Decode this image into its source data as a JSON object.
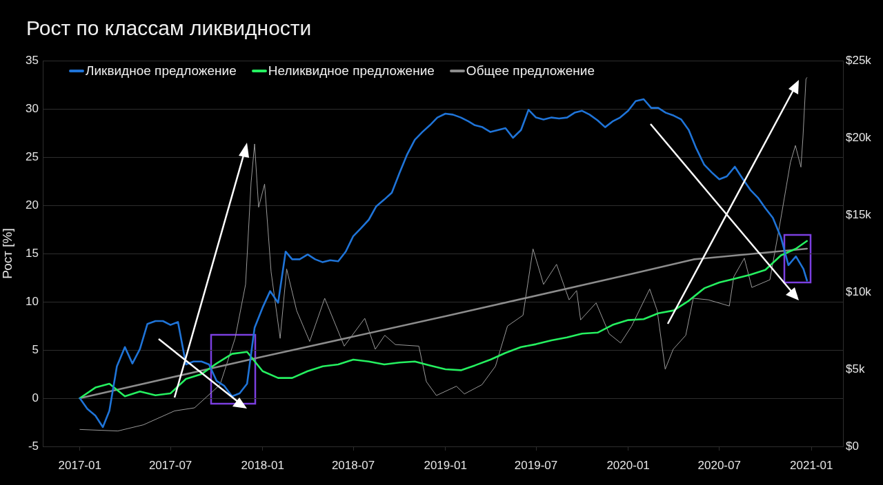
{
  "chart_data": {
    "type": "line",
    "title": "Рост по классам ликвидности",
    "ylabel": "Рост [%]",
    "xlim": [
      "2016-10-19",
      "2021-03-05"
    ],
    "xticks": [
      "2017-01",
      "2017-07",
      "2018-01",
      "2018-07",
      "2019-01",
      "2019-07",
      "2020-01",
      "2020-07",
      "2021-01"
    ],
    "ylim": [
      -5,
      35
    ],
    "yticks": [
      -5,
      0,
      5,
      10,
      15,
      20,
      25,
      30,
      35
    ],
    "y2lim": [
      0,
      25000
    ],
    "y2ticks": [
      {
        "value": 0,
        "label": "$0"
      },
      {
        "value": 5000,
        "label": "$5k"
      },
      {
        "value": 10000,
        "label": "$10k"
      },
      {
        "value": 15000,
        "label": "$15k"
      },
      {
        "value": 20000,
        "label": "$20k"
      },
      {
        "value": 25000,
        "label": "$25k"
      }
    ],
    "grid": "y",
    "legend": "top left",
    "marker": "none",
    "line_style": "solid",
    "series": [
      {
        "name": "Ликвидное предложение",
        "color": "#1f74d8",
        "x": [
          "2017-01-01",
          "2017-01-16",
          "2017-02-01",
          "2017-02-16",
          "2017-03-01",
          "2017-03-16",
          "2017-04-01",
          "2017-04-16",
          "2017-05-01",
          "2017-05-16",
          "2017-06-01",
          "2017-06-16",
          "2017-07-01",
          "2017-07-16",
          "2017-08-01",
          "2017-08-16",
          "2017-09-01",
          "2017-09-16",
          "2017-10-01",
          "2017-10-16",
          "2017-11-01",
          "2017-11-16",
          "2017-12-01",
          "2017-12-16",
          "2018-01-01",
          "2018-01-16",
          "2018-02-01",
          "2018-02-16",
          "2018-03-01",
          "2018-03-16",
          "2018-04-01",
          "2018-04-16",
          "2018-05-01",
          "2018-05-16",
          "2018-06-01",
          "2018-06-16",
          "2018-07-01",
          "2018-07-16",
          "2018-08-01",
          "2018-08-16",
          "2018-09-01",
          "2018-09-16",
          "2018-10-01",
          "2018-10-16",
          "2018-11-01",
          "2018-11-16",
          "2018-12-01",
          "2018-12-16",
          "2019-01-01",
          "2019-01-16",
          "2019-02-01",
          "2019-02-16",
          "2019-03-01",
          "2019-03-16",
          "2019-04-01",
          "2019-04-16",
          "2019-05-01",
          "2019-05-16",
          "2019-06-01",
          "2019-06-16",
          "2019-07-01",
          "2019-07-16",
          "2019-08-01",
          "2019-08-16",
          "2019-09-01",
          "2019-09-16",
          "2019-10-01",
          "2019-10-16",
          "2019-11-01",
          "2019-11-16",
          "2019-12-01",
          "2019-12-16",
          "2020-01-01",
          "2020-01-16",
          "2020-02-01",
          "2020-02-16",
          "2020-03-01",
          "2020-03-16",
          "2020-04-01",
          "2020-04-16",
          "2020-05-01",
          "2020-05-16",
          "2020-06-01",
          "2020-06-16",
          "2020-07-01",
          "2020-07-16",
          "2020-08-01",
          "2020-08-16",
          "2020-09-01",
          "2020-09-16",
          "2020-10-01",
          "2020-10-16",
          "2020-11-01",
          "2020-11-16",
          "2020-12-01",
          "2020-12-16",
          "2020-12-23"
        ],
        "values": [
          0,
          -1.1,
          -1.8,
          -3.0,
          -1.3,
          3.3,
          5.3,
          3.6,
          5.1,
          7.7,
          8.0,
          8.0,
          7.6,
          7.9,
          3.5,
          3.8,
          3.8,
          3.5,
          1.8,
          1.3,
          0.2,
          0.5,
          1.5,
          7.3,
          9.4,
          11.1,
          9.9,
          15.2,
          14.4,
          14.4,
          14.9,
          14.4,
          14.1,
          14.3,
          14.2,
          15.2,
          16.8,
          17.6,
          18.5,
          19.9,
          20.6,
          21.3,
          23.3,
          25.2,
          26.8,
          27.6,
          28.3,
          29.1,
          29.5,
          29.4,
          29.1,
          28.7,
          28.3,
          28.1,
          27.6,
          27.8,
          28.0,
          27.0,
          27.8,
          29.9,
          29.1,
          28.9,
          29.1,
          29.0,
          29.1,
          29.6,
          29.8,
          29.4,
          28.8,
          28.1,
          28.7,
          29.1,
          29.8,
          30.8,
          31.0,
          30.1,
          30.1,
          29.6,
          29.3,
          28.9,
          27.8,
          25.9,
          24.2,
          23.4,
          22.7,
          23.0,
          24.0,
          22.8,
          21.6,
          20.8,
          19.7,
          18.7,
          16.7,
          13.8,
          14.7,
          13.4,
          12.2
        ]
      },
      {
        "name": "Неликвидное предложение",
        "color": "#25f060",
        "x": [
          "2017-01-01",
          "2017-02-01",
          "2017-03-01",
          "2017-04-01",
          "2017-05-01",
          "2017-06-01",
          "2017-07-01",
          "2017-08-01",
          "2017-09-01",
          "2017-10-01",
          "2017-11-01",
          "2017-12-01",
          "2018-01-01",
          "2018-02-01",
          "2018-03-01",
          "2018-04-01",
          "2018-05-01",
          "2018-06-01",
          "2018-07-01",
          "2018-08-01",
          "2018-09-01",
          "2018-10-01",
          "2018-11-01",
          "2018-12-01",
          "2019-01-01",
          "2019-02-01",
          "2019-03-01",
          "2019-04-01",
          "2019-05-01",
          "2019-06-01",
          "2019-07-01",
          "2019-08-01",
          "2019-09-01",
          "2019-10-01",
          "2019-11-01",
          "2019-12-01",
          "2020-01-01",
          "2020-02-01",
          "2020-03-01",
          "2020-04-01",
          "2020-05-01",
          "2020-06-01",
          "2020-07-01",
          "2020-08-01",
          "2020-09-01",
          "2020-10-01",
          "2020-11-01",
          "2020-12-01",
          "2020-12-23"
        ],
        "values": [
          0,
          1.1,
          1.5,
          0.2,
          0.7,
          0.3,
          0.5,
          2.0,
          2.5,
          3.6,
          4.6,
          4.8,
          2.8,
          2.1,
          2.1,
          2.8,
          3.3,
          3.5,
          4.0,
          3.8,
          3.5,
          3.7,
          3.8,
          3.4,
          3.0,
          2.9,
          3.4,
          4.0,
          4.7,
          5.3,
          5.6,
          6.0,
          6.3,
          6.7,
          6.8,
          7.6,
          8.1,
          8.2,
          8.8,
          9.1,
          10.1,
          11.4,
          12.0,
          12.4,
          12.8,
          13.3,
          14.8,
          15.5,
          16.3
        ]
      },
      {
        "name": "Общее предложение",
        "color": "#8c8c8c",
        "x": [
          "2017-01-01",
          "2018-01-01",
          "2019-01-01",
          "2020-01-01",
          "2020-05-11",
          "2020-12-23"
        ],
        "values": [
          0,
          4.3,
          8.5,
          12.8,
          14.4,
          15.5
        ]
      },
      {
        "color": "#9a9a9a",
        "axis": "y2",
        "x": [
          "2017-01-01",
          "2017-03-18",
          "2017-05-08",
          "2017-07-09",
          "2017-08-18",
          "2017-10-08",
          "2017-11-07",
          "2017-11-28",
          "2017-12-09",
          "2017-12-16",
          "2017-12-24",
          "2018-01-05",
          "2018-01-18",
          "2018-02-05",
          "2018-02-18",
          "2018-03-10",
          "2018-04-05",
          "2018-05-05",
          "2018-06-13",
          "2018-07-24",
          "2018-08-14",
          "2018-09-02",
          "2018-09-23",
          "2018-11-09",
          "2018-11-24",
          "2018-12-14",
          "2019-01-23",
          "2019-02-08",
          "2019-03-15",
          "2019-04-11",
          "2019-05-05",
          "2019-06-05",
          "2019-06-25",
          "2019-07-16",
          "2019-08-11",
          "2019-09-05",
          "2019-09-20",
          "2019-09-28",
          "2019-10-29",
          "2019-11-24",
          "2019-12-17",
          "2020-01-08",
          "2020-02-13",
          "2020-02-28",
          "2020-03-15",
          "2020-03-31",
          "2020-04-25",
          "2020-05-10",
          "2020-06-09",
          "2020-07-21",
          "2020-07-30",
          "2020-08-20",
          "2020-09-04",
          "2020-10-10",
          "2020-10-31",
          "2020-11-20",
          "2020-11-30",
          "2020-12-11",
          "2020-12-15",
          "2020-12-21",
          "2020-12-23"
        ],
        "values": [
          1100,
          1000,
          1400,
          2300,
          2500,
          4000,
          7000,
          10500,
          17100,
          19600,
          15500,
          17000,
          11300,
          7000,
          11500,
          8800,
          6800,
          9600,
          6500,
          8300,
          6300,
          7200,
          6600,
          6500,
          4200,
          3300,
          3900,
          3400,
          4000,
          5200,
          7800,
          8500,
          12800,
          10500,
          11800,
          9500,
          10100,
          8200,
          9300,
          7300,
          6700,
          7800,
          10200,
          8800,
          5000,
          6300,
          7200,
          9600,
          9500,
          9100,
          11000,
          12200,
          10300,
          10800,
          14600,
          18400,
          19500,
          18100,
          20000,
          23800,
          23900
        ]
      }
    ]
  }
}
